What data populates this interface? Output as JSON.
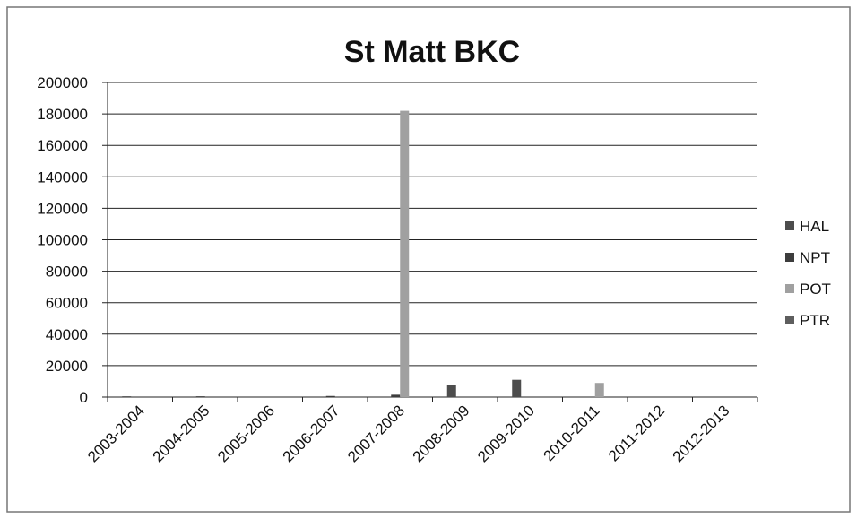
{
  "chart_data": {
    "type": "bar",
    "title": "St Matt BKC",
    "categories": [
      "2003-2004",
      "2004-2005",
      "2005-2006",
      "2006-2007",
      "2007-2008",
      "2008-2009",
      "2009-2010",
      "2010-2011",
      "2011-2012",
      "2012-2013"
    ],
    "series": [
      {
        "name": "HAL",
        "color": "#4d4d4d",
        "values": [
          500,
          0,
          0,
          0,
          0,
          7500,
          11000,
          0,
          0,
          0
        ]
      },
      {
        "name": "NPT",
        "color": "#3d3d3d",
        "values": [
          0,
          500,
          0,
          700,
          1500,
          0,
          0,
          0,
          0,
          0
        ]
      },
      {
        "name": "POT",
        "color": "#a0a0a0",
        "values": [
          0,
          0,
          0,
          0,
          182000,
          0,
          0,
          9000,
          0,
          0
        ]
      },
      {
        "name": "PTR",
        "color": "#5e5e5e",
        "values": [
          0,
          0,
          0,
          0,
          0,
          0,
          0,
          0,
          0,
          0
        ]
      }
    ],
    "ylim": [
      0,
      200000
    ],
    "yticks": [
      0,
      20000,
      40000,
      60000,
      80000,
      100000,
      120000,
      140000,
      160000,
      180000,
      200000
    ],
    "grid": true,
    "legend": "right"
  }
}
